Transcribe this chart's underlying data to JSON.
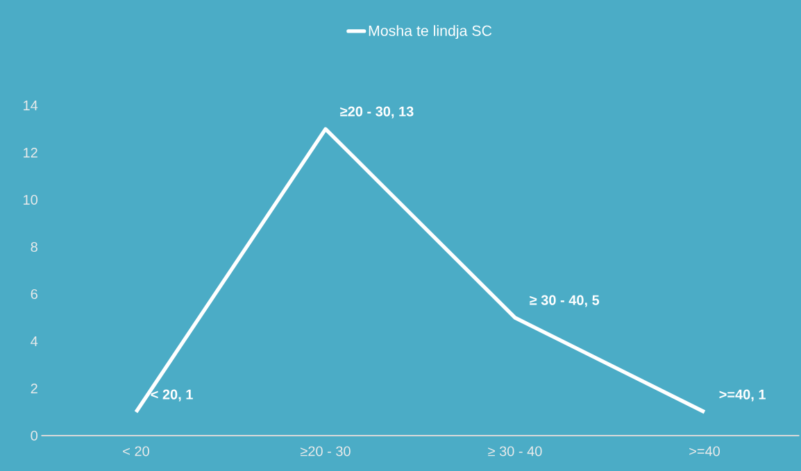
{
  "chart_data": {
    "type": "line",
    "categories": [
      "< 20",
      "≥20 - 30",
      "≥ 30 - 40",
      ">=40"
    ],
    "series": [
      {
        "name": "Mosha te lindja SC",
        "color": "#ffffff",
        "values": [
          1,
          13,
          5,
          1
        ],
        "value_labels": [
          "< 20, 1",
          "≥20 - 30, 13",
          "≥ 30 - 40, 5",
          ">=40, 1"
        ]
      }
    ],
    "ylim": [
      0,
      14
    ],
    "yticks": [
      0,
      2,
      4,
      6,
      8,
      10,
      12,
      14
    ],
    "grid": false,
    "legend": "top",
    "marker": "none",
    "line_style": "solid"
  }
}
